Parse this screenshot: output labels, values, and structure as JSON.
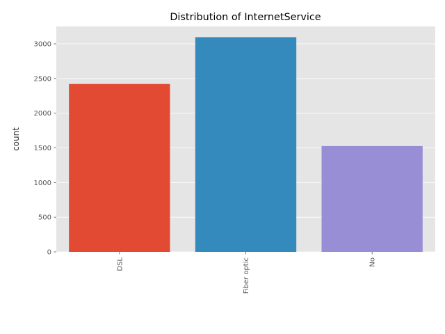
{
  "chart_data": {
    "type": "bar",
    "title": "Distribution of InternetService",
    "xlabel": "",
    "ylabel": "count",
    "categories": [
      "DSL",
      "Fiber optic",
      "No"
    ],
    "values": [
      2421,
      3096,
      1526
    ],
    "ylim": [
      0,
      3251
    ],
    "yticks": [
      0,
      500,
      1000,
      1500,
      2000,
      2500,
      3000
    ],
    "colors": [
      "#E24A33",
      "#348ABD",
      "#988ED5"
    ],
    "background": "#E5E5E5",
    "grid": true
  }
}
